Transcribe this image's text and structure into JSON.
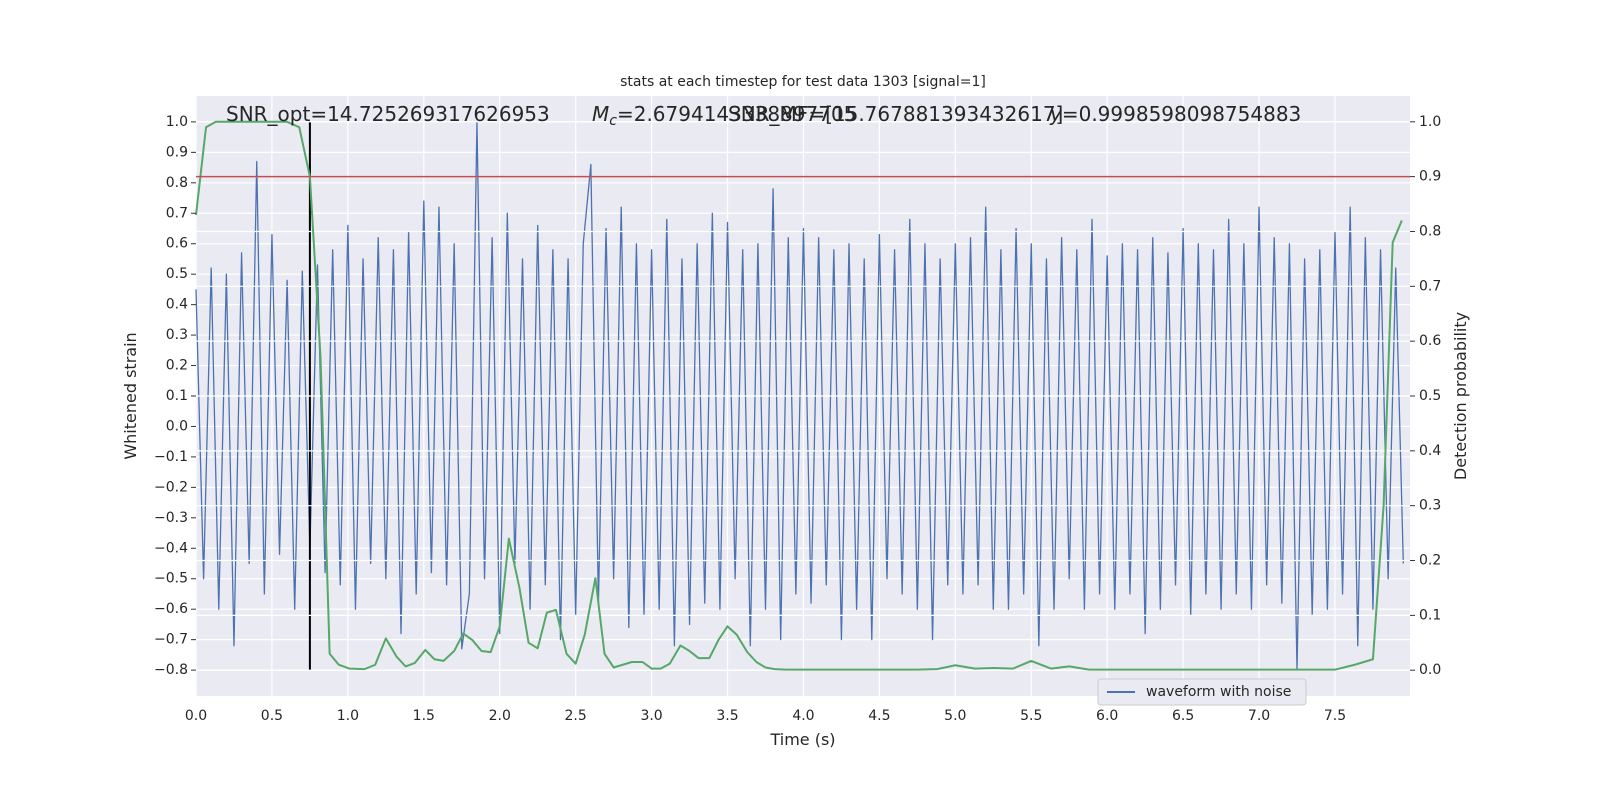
{
  "chart_data": {
    "type": "line",
    "title": "stats at each timestep for test data 1303 [signal=1]",
    "xlabel": "Time (s)",
    "ylabel": "Whitened strain",
    "y2label": "Detection probability",
    "annotations": [
      {
        "text": "SNR_opt=14.725269317626953"
      },
      {
        "symbol": "M",
        "subscript": "c",
        "text": "=2.6794143338897705"
      },
      {
        "text": "SNR_MF=[15.767881393432617]"
      },
      {
        "symbol": "y",
        "text": "=0.9998598098754883"
      }
    ],
    "xlim": [
      0,
      7.994
    ],
    "ylim": [
      -0.885,
      1.085
    ],
    "y2lim": [
      -0.047,
      1.047
    ],
    "xticks": [
      {
        "value": 0,
        "label": "0.0"
      },
      0.5,
      {
        "value": 1,
        "label": "1.0"
      },
      1.5,
      {
        "value": 2,
        "label": "2.0"
      },
      2.5,
      {
        "value": 3,
        "label": "3.0"
      },
      3.5,
      {
        "value": 4,
        "label": "4.0"
      },
      4.5,
      {
        "value": 5,
        "label": "5.0"
      },
      5.5,
      {
        "value": 6,
        "label": "6.0"
      },
      6.5,
      {
        "value": 7,
        "label": "7.0"
      },
      7.5
    ],
    "yticks": [
      {
        "value": -0.8,
        "label": "−0.8"
      },
      {
        "value": -0.7,
        "label": "−0.7"
      },
      {
        "value": -0.6,
        "label": "−0.6"
      },
      {
        "value": -0.5,
        "label": "−0.5"
      },
      {
        "value": -0.4,
        "label": "−0.4"
      },
      {
        "value": -0.3,
        "label": "−0.3"
      },
      {
        "value": -0.2,
        "label": "−0.2"
      },
      {
        "value": -0.1,
        "label": "−0.1"
      },
      {
        "value": 0,
        "label": "0.0"
      },
      0.1,
      0.2,
      0.3,
      0.4,
      0.5,
      0.6,
      0.7,
      0.8,
      0.9,
      {
        "value": 1,
        "label": "1.0"
      }
    ],
    "y2ticks": [
      {
        "value": 0,
        "label": "0.0"
      },
      0.1,
      0.2,
      0.3,
      0.4,
      0.5,
      0.6,
      0.7,
      0.8,
      0.9,
      {
        "value": 1,
        "label": "1.0"
      }
    ],
    "grid": true,
    "legend": "lower right",
    "series": [
      {
        "name": "waveform with noise",
        "color": "#4c72b0",
        "x": [
          0,
          0.05,
          0.1,
          0.15,
          0.2,
          0.25,
          0.3,
          0.35,
          0.4,
          0.45,
          0.5,
          0.55,
          0.6,
          0.65,
          0.7,
          0.75,
          0.8,
          0.85,
          0.9,
          0.95,
          1,
          1.05,
          1.1,
          1.15,
          1.2,
          1.25,
          1.3,
          1.35,
          1.4,
          1.45,
          1.5,
          1.55,
          1.6,
          1.65,
          1.7,
          1.75,
          1.8,
          1.85,
          1.9,
          1.95,
          2,
          2.05,
          2.1,
          2.15,
          2.2,
          2.25,
          2.3,
          2.35,
          2.4,
          2.45,
          2.5,
          2.55,
          2.6,
          2.65,
          2.7,
          2.75,
          2.8,
          2.85,
          2.9,
          2.95,
          3,
          3.05,
          3.1,
          3.15,
          3.2,
          3.25,
          3.3,
          3.35,
          3.4,
          3.45,
          3.5,
          3.55,
          3.6,
          3.65,
          3.7,
          3.75,
          3.8,
          3.85,
          3.9,
          3.95,
          4,
          4.05,
          4.1,
          4.15,
          4.2,
          4.25,
          4.3,
          4.35,
          4.4,
          4.45,
          4.5,
          4.55,
          4.6,
          4.65,
          4.7,
          4.75,
          4.8,
          4.85,
          4.9,
          4.95,
          5,
          5.05,
          5.1,
          5.15,
          5.2,
          5.25,
          5.3,
          5.35,
          5.4,
          5.45,
          5.5,
          5.55,
          5.6,
          5.65,
          5.7,
          5.75,
          5.8,
          5.85,
          5.9,
          5.95,
          6,
          6.05,
          6.1,
          6.15,
          6.2,
          6.25,
          6.3,
          6.35,
          6.4,
          6.45,
          6.5,
          6.55,
          6.6,
          6.65,
          6.7,
          6.75,
          6.8,
          6.85,
          6.9,
          6.95,
          7,
          7.05,
          7.1,
          7.15,
          7.2,
          7.25,
          7.3,
          7.35,
          7.4,
          7.45,
          7.5,
          7.55,
          7.6,
          7.65,
          7.7,
          7.75,
          7.8,
          7.85,
          7.9,
          7.95
        ],
        "values": [
          0.45,
          -0.5,
          0.52,
          -0.6,
          0.5,
          -0.72,
          0.57,
          -0.45,
          0.87,
          -0.55,
          0.63,
          -0.42,
          0.48,
          -0.6,
          0.51,
          -0.4,
          0.53,
          -0.48,
          0.58,
          -0.52,
          0.66,
          -0.6,
          0.55,
          -0.45,
          0.62,
          -0.5,
          0.58,
          -0.68,
          0.64,
          -0.55,
          0.74,
          -0.48,
          0.72,
          -0.52,
          0.6,
          -0.73,
          -0.55,
          1.0,
          -0.5,
          0.62,
          -0.68,
          0.7,
          -0.45,
          0.55,
          -0.6,
          0.66,
          -0.52,
          0.58,
          -0.7,
          0.55,
          -0.62,
          0.6,
          0.86,
          -0.58,
          0.65,
          -0.5,
          0.72,
          -0.66,
          0.6,
          -0.62,
          0.58,
          -0.6,
          0.68,
          -0.72,
          0.55,
          -0.65,
          0.6,
          -0.58,
          0.7,
          -0.6,
          0.67,
          -0.5,
          0.58,
          -0.72,
          0.6,
          -0.6,
          0.78,
          -0.7,
          0.62,
          -0.55,
          0.65,
          -0.58,
          0.62,
          -0.52,
          0.58,
          -0.7,
          0.6,
          -0.6,
          0.55,
          -0.7,
          0.63,
          -0.5,
          0.58,
          -0.55,
          0.68,
          -0.6,
          0.6,
          -0.7,
          0.55,
          -0.52,
          0.6,
          -0.55,
          0.62,
          -0.52,
          0.72,
          -0.6,
          0.58,
          -0.6,
          0.65,
          -0.55,
          0.6,
          -0.72,
          0.55,
          -0.6,
          0.62,
          -0.5,
          0.58,
          -0.6,
          0.68,
          -0.55,
          0.56,
          -0.6,
          0.6,
          -0.55,
          0.58,
          -0.68,
          0.62,
          -0.6,
          0.57,
          -0.52,
          0.65,
          -0.62,
          0.6,
          -0.55,
          0.58,
          -0.6,
          0.68,
          -0.55,
          0.6,
          -0.6,
          0.72,
          -0.52,
          0.62,
          -0.58,
          0.6,
          -0.8,
          0.55,
          -0.62,
          0.58,
          -0.6,
          0.64,
          -0.55,
          0.72,
          -0.72,
          0.62,
          -0.6,
          0.58,
          -0.5,
          0.52,
          -0.45
        ]
      },
      {
        "color": "#55a868",
        "axis": "y2",
        "x": [
          0,
          0.066,
          0.13,
          0.2,
          0.3,
          0.4,
          0.5,
          0.6,
          0.68,
          0.75,
          0.82,
          0.88,
          0.94,
          1.01,
          1.11,
          1.18,
          1.25,
          1.32,
          1.38,
          1.44,
          1.51,
          1.57,
          1.63,
          1.7,
          1.76,
          1.82,
          1.88,
          1.94,
          2.0,
          2.06,
          2.13,
          2.19,
          2.25,
          2.31,
          2.37,
          2.44,
          2.5,
          2.56,
          2.63,
          2.69,
          2.75,
          2.81,
          2.87,
          2.94,
          3.0,
          3.06,
          3.12,
          3.19,
          3.25,
          3.31,
          3.38,
          3.44,
          3.5,
          3.56,
          3.63,
          3.69,
          3.75,
          3.81,
          3.88,
          4.0,
          4.25,
          4.5,
          4.75,
          4.88,
          5.0,
          5.13,
          5.25,
          5.38,
          5.5,
          5.63,
          5.75,
          5.88,
          6.0,
          6.5,
          7.0,
          7.5,
          7.63,
          7.75,
          7.82,
          7.88,
          7.94
        ],
        "values": [
          0.83,
          0.99,
          1,
          1,
          1,
          1,
          1,
          1,
          0.99,
          0.9,
          0.57,
          0.03,
          0.01,
          0.003,
          0.002,
          0.01,
          0.058,
          0.025,
          0.007,
          0.013,
          0.037,
          0.02,
          0.017,
          0.035,
          0.067,
          0.055,
          0.035,
          0.033,
          0.08,
          0.24,
          0.15,
          0.05,
          0.04,
          0.105,
          0.11,
          0.03,
          0.012,
          0.065,
          0.168,
          0.03,
          0.005,
          0.01,
          0.015,
          0.015,
          0.003,
          0.003,
          0.012,
          0.045,
          0.035,
          0.022,
          0.022,
          0.055,
          0.08,
          0.065,
          0.033,
          0.015,
          0.005,
          0.002,
          0.001,
          0.001,
          0.001,
          0.001,
          0.001,
          0.002,
          0.009,
          0.003,
          0.004,
          0.003,
          0.017,
          0.003,
          0.007,
          0.001,
          0.001,
          0.001,
          0.001,
          0.001,
          0.01,
          0.02,
          0.3,
          0.78,
          0.82
        ]
      }
    ],
    "hline": {
      "y": 0.9,
      "axis": "y2",
      "color": "#c44e52"
    },
    "vline": {
      "x": 0.75,
      "ymin": -0.8,
      "ymax": 1.0,
      "color": "#000000"
    }
  }
}
